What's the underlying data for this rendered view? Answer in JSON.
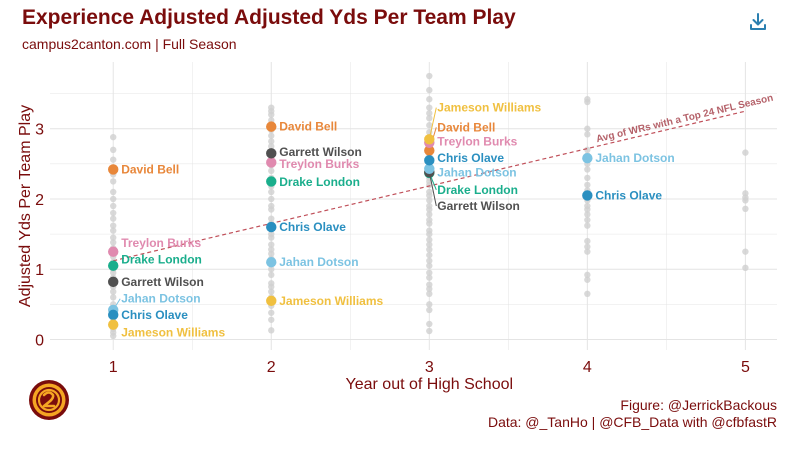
{
  "header": {
    "title": "Experience Adjusted Adjusted Yds Per Team Play",
    "subtitle": "campus2canton.com | Full Season",
    "download_icon": "download-icon"
  },
  "caption": {
    "figure": "Figure: @JerrickBackous",
    "data": "Data: @_TanHo | @CFB_Data with @cfbfastR"
  },
  "logo": {
    "icon": "campus2canton-logo",
    "color": "#f5a623"
  },
  "chart_data": {
    "type": "scatter",
    "title": "Experience Adjusted Adjusted Yds Per Team Play",
    "subtitle": "campus2canton.com | Full Season",
    "xlabel": "Year out of High School",
    "ylabel": "Adjusted Yds Per Team Play",
    "xlim": [
      0.6,
      5.2
    ],
    "ylim": [
      -0.15,
      3.95
    ],
    "x_ticks": [
      1,
      2,
      3,
      4,
      5
    ],
    "y_ticks": [
      0,
      1,
      2,
      3
    ],
    "grid": true,
    "trend_line": {
      "label": "Avg of WRs with a Top 24 NFL Season",
      "color": "#c0505a",
      "points": [
        [
          1,
          1.12
        ],
        [
          5,
          3.25
        ]
      ]
    },
    "background_points": [
      [
        1,
        2.88
      ],
      [
        1,
        2.7
      ],
      [
        1,
        2.56
      ],
      [
        1,
        2.45
      ],
      [
        1,
        2.35
      ],
      [
        1,
        2.25
      ],
      [
        1,
        2.1
      ],
      [
        1,
        2.0
      ],
      [
        1,
        1.9
      ],
      [
        1,
        1.8
      ],
      [
        1,
        1.72
      ],
      [
        1,
        1.62
      ],
      [
        1,
        1.55
      ],
      [
        1,
        1.45
      ],
      [
        1,
        1.38
      ],
      [
        1,
        1.3
      ],
      [
        1,
        1.18
      ],
      [
        1,
        1.1
      ],
      [
        1,
        1.0
      ],
      [
        1,
        0.95
      ],
      [
        1,
        0.88
      ],
      [
        1,
        0.75
      ],
      [
        1,
        0.68
      ],
      [
        1,
        0.6
      ],
      [
        1,
        0.5
      ],
      [
        1,
        0.45
      ],
      [
        1,
        0.38
      ],
      [
        1,
        0.3
      ],
      [
        1,
        0.25
      ],
      [
        1,
        0.15
      ],
      [
        1,
        0.1
      ],
      [
        1,
        0.05
      ],
      [
        2,
        3.3
      ],
      [
        2,
        3.25
      ],
      [
        2,
        3.2
      ],
      [
        2,
        3.12
      ],
      [
        2,
        2.98
      ],
      [
        2,
        2.9
      ],
      [
        2,
        2.82
      ],
      [
        2,
        2.75
      ],
      [
        2,
        2.6
      ],
      [
        2,
        2.48
      ],
      [
        2,
        2.4
      ],
      [
        2,
        2.3
      ],
      [
        2,
        2.18
      ],
      [
        2,
        2.1
      ],
      [
        2,
        2.0
      ],
      [
        2,
        1.9
      ],
      [
        2,
        1.85
      ],
      [
        2,
        1.72
      ],
      [
        2,
        1.65
      ],
      [
        2,
        1.5
      ],
      [
        2,
        1.45
      ],
      [
        2,
        1.35
      ],
      [
        2,
        1.28
      ],
      [
        2,
        1.22
      ],
      [
        2,
        1.15
      ],
      [
        2,
        1.0
      ],
      [
        2,
        0.92
      ],
      [
        2,
        0.8
      ],
      [
        2,
        0.75
      ],
      [
        2,
        0.68
      ],
      [
        2,
        0.6
      ],
      [
        2,
        0.48
      ],
      [
        2,
        0.38
      ],
      [
        2,
        0.28
      ],
      [
        2,
        0.13
      ],
      [
        3,
        3.75
      ],
      [
        3,
        3.55
      ],
      [
        3,
        3.42
      ],
      [
        3,
        3.3
      ],
      [
        3,
        3.22
      ],
      [
        3,
        3.15
      ],
      [
        3,
        3.05
      ],
      [
        3,
        2.95
      ],
      [
        3,
        2.88
      ],
      [
        3,
        2.8
      ],
      [
        3,
        2.75
      ],
      [
        3,
        2.62
      ],
      [
        3,
        2.55
      ],
      [
        3,
        2.48
      ],
      [
        3,
        2.42
      ],
      [
        3,
        2.35
      ],
      [
        3,
        2.3
      ],
      [
        3,
        2.25
      ],
      [
        3,
        2.2
      ],
      [
        3,
        2.1
      ],
      [
        3,
        2.05
      ],
      [
        3,
        1.98
      ],
      [
        3,
        1.9
      ],
      [
        3,
        1.85
      ],
      [
        3,
        1.78
      ],
      [
        3,
        1.7
      ],
      [
        3,
        1.65
      ],
      [
        3,
        1.55
      ],
      [
        3,
        1.5
      ],
      [
        3,
        1.42
      ],
      [
        3,
        1.35
      ],
      [
        3,
        1.28
      ],
      [
        3,
        1.2
      ],
      [
        3,
        1.12
      ],
      [
        3,
        1.05
      ],
      [
        3,
        0.95
      ],
      [
        3,
        0.88
      ],
      [
        3,
        0.78
      ],
      [
        3,
        0.72
      ],
      [
        3,
        0.65
      ],
      [
        3,
        0.5
      ],
      [
        3,
        0.42
      ],
      [
        3,
        0.22
      ],
      [
        3,
        0.12
      ],
      [
        4,
        3.42
      ],
      [
        4,
        3.38
      ],
      [
        4,
        3.0
      ],
      [
        4,
        2.92
      ],
      [
        4,
        2.7
      ],
      [
        4,
        2.62
      ],
      [
        4,
        2.5
      ],
      [
        4,
        2.42
      ],
      [
        4,
        2.3
      ],
      [
        4,
        2.2
      ],
      [
        4,
        2.12
      ],
      [
        4,
        1.98
      ],
      [
        4,
        1.9
      ],
      [
        4,
        1.85
      ],
      [
        4,
        1.78
      ],
      [
        4,
        1.7
      ],
      [
        4,
        1.62
      ],
      [
        4,
        1.4
      ],
      [
        4,
        1.32
      ],
      [
        4,
        1.25
      ],
      [
        4,
        0.92
      ],
      [
        4,
        0.85
      ],
      [
        4,
        0.65
      ],
      [
        5,
        2.66
      ],
      [
        5,
        2.08
      ],
      [
        5,
        2.02
      ],
      [
        5,
        1.98
      ],
      [
        5,
        1.86
      ],
      [
        5,
        1.25
      ],
      [
        5,
        1.02
      ]
    ],
    "series": [
      {
        "name": "David Bell",
        "color": "#e8873a",
        "points": [
          [
            1,
            2.42
          ],
          [
            2,
            3.03
          ],
          [
            3,
            2.69
          ]
        ],
        "label_y": [
          2.42,
          3.03,
          3.02
        ]
      },
      {
        "name": "Treylon Burks",
        "color": "#e08aaf",
        "points": [
          [
            1,
            1.25
          ],
          [
            2,
            2.52
          ],
          [
            3,
            2.8
          ]
        ],
        "label_y": [
          1.37,
          2.5,
          2.82
        ]
      },
      {
        "name": "Drake London",
        "color": "#1aae8c",
        "points": [
          [
            1,
            1.05
          ],
          [
            2,
            2.25
          ],
          [
            3,
            2.37
          ]
        ],
        "label_y": [
          1.14,
          2.24,
          2.13
        ]
      },
      {
        "name": "Garrett Wilson",
        "color": "#505050",
        "points": [
          [
            1,
            0.82
          ],
          [
            2,
            2.65
          ],
          [
            3,
            2.38
          ]
        ],
        "label_y": [
          0.82,
          2.67,
          1.9
        ]
      },
      {
        "name": "Jahan Dotson",
        "color": "#7cc3e2",
        "points": [
          [
            1,
            0.42
          ],
          [
            2,
            1.1
          ],
          [
            3,
            2.43
          ],
          [
            4,
            2.58
          ]
        ],
        "label_y": [
          0.58,
          1.1,
          2.38,
          2.58
        ]
      },
      {
        "name": "Chris Olave",
        "color": "#2a8fc0",
        "points": [
          [
            1,
            0.35
          ],
          [
            2,
            1.6
          ],
          [
            3,
            2.55
          ],
          [
            4,
            2.05
          ]
        ],
        "label_y": [
          0.35,
          1.6,
          2.58,
          2.05
        ]
      },
      {
        "name": "Jameson Williams",
        "color": "#f0c040",
        "points": [
          [
            1,
            0.21
          ],
          [
            2,
            0.55
          ],
          [
            3,
            2.85
          ]
        ],
        "label_y": [
          0.1,
          0.55,
          3.3
        ]
      }
    ]
  }
}
